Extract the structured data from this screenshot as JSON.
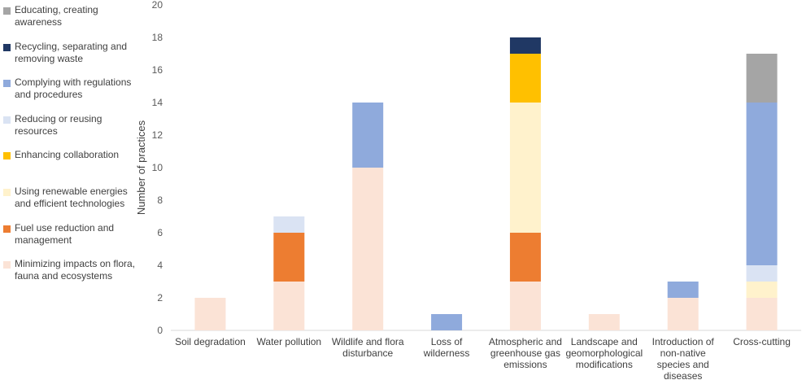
{
  "chart_data": {
    "type": "bar",
    "stacked": true,
    "title": "",
    "xlabel": "",
    "ylabel": "Number of practices",
    "ylim": [
      0,
      20
    ],
    "yticks": [
      0,
      2,
      4,
      6,
      8,
      10,
      12,
      14,
      16,
      18,
      20
    ],
    "grid": false,
    "legend_position": "left",
    "categories": [
      [
        "Soil degradation"
      ],
      [
        "Water pollution"
      ],
      [
        "Wildlife and flora",
        "disturbance"
      ],
      [
        "Loss of",
        "wilderness"
      ],
      [
        "Atmospheric and",
        "greenhouse gas",
        "emissions"
      ],
      [
        "Landscape and",
        "geomorphological",
        "modifications"
      ],
      [
        "Introduction of",
        "non-native",
        "species and",
        "diseases"
      ],
      [
        "Cross-cutting"
      ]
    ],
    "series": [
      {
        "name": [
          "Minimizing impacts on flora,",
          "fauna and ecosystems"
        ],
        "color": "#FBE3D6",
        "values": [
          2,
          3,
          10,
          0,
          3,
          1,
          2,
          2
        ]
      },
      {
        "name": [
          "Fuel use reduction and",
          "management"
        ],
        "color": "#ED7D31",
        "values": [
          0,
          3,
          0,
          0,
          3,
          0,
          0,
          0
        ]
      },
      {
        "name": [
          "Using renewable energies",
          "and efficient technologies"
        ],
        "color": "#FFF2CC",
        "values": [
          0,
          0,
          0,
          0,
          8,
          0,
          0,
          1
        ]
      },
      {
        "name": [
          "Enhancing collaboration"
        ],
        "color": "#FFC000",
        "values": [
          0,
          0,
          0,
          0,
          3,
          0,
          0,
          0
        ]
      },
      {
        "name": [
          "Reducing or reusing",
          "resources"
        ],
        "color": "#DAE3F3",
        "values": [
          0,
          1,
          0,
          0,
          0,
          0,
          0,
          1
        ]
      },
      {
        "name": [
          "Complying with regulations",
          "and procedures"
        ],
        "color": "#8FAADC",
        "values": [
          0,
          0,
          4,
          1,
          0,
          0,
          1,
          10
        ]
      },
      {
        "name": [
          "Recycling, separating and",
          "removing waste"
        ],
        "color": "#203864",
        "values": [
          0,
          0,
          0,
          0,
          1,
          0,
          0,
          0
        ]
      },
      {
        "name": [
          "Educating, creating",
          "awareness"
        ],
        "color": "#A5A5A5",
        "values": [
          0,
          0,
          0,
          0,
          0,
          0,
          0,
          3
        ]
      }
    ]
  }
}
